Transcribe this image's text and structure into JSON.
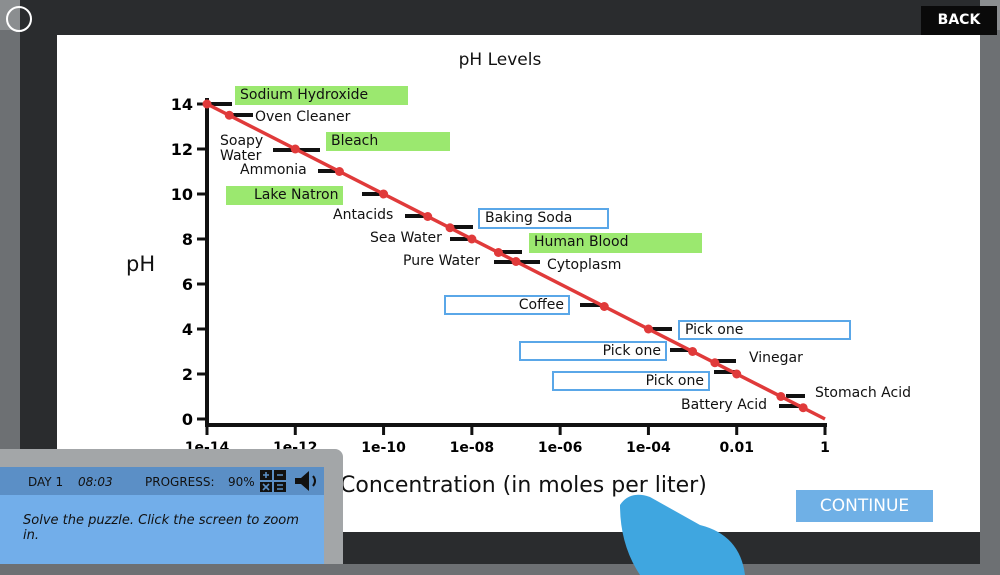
{
  "top": {
    "back_label": "BACK",
    "view_icon": "rotate-view-icon"
  },
  "chart_data": {
    "type": "line",
    "title": "pH Levels",
    "xlabel": "Concentration (in moles per liter)",
    "ylabel": "pH",
    "x_scale": "log",
    "xlim": [
      1e-14,
      1
    ],
    "ylim": [
      0,
      14
    ],
    "x_ticks": [
      "1e-14",
      "1e-12",
      "1e-10",
      "1e-08",
      "1e-06",
      "1e-04",
      "0.01",
      "1"
    ],
    "y_ticks": [
      "0",
      "2",
      "4",
      "6",
      "8",
      "10",
      "12",
      "14"
    ],
    "line_color": "#e03a3a",
    "points": [
      {
        "x": 1e-14,
        "y": 14
      },
      {
        "x": 3.2e-14,
        "y": 13.5
      },
      {
        "x": 1e-12,
        "y": 12
      },
      {
        "x": 1e-11,
        "y": 11
      },
      {
        "x": 1e-10,
        "y": 10
      },
      {
        "x": 1e-09,
        "y": 9
      },
      {
        "x": 3.2e-09,
        "y": 8.5
      },
      {
        "x": 1e-08,
        "y": 8
      },
      {
        "x": 4e-08,
        "y": 7.4
      },
      {
        "x": 1e-07,
        "y": 7
      },
      {
        "x": 1e-05,
        "y": 5
      },
      {
        "x": 0.0001,
        "y": 4
      },
      {
        "x": 0.001,
        "y": 3
      },
      {
        "x": 0.0032,
        "y": 2.5
      },
      {
        "x": 0.01,
        "y": 2
      },
      {
        "x": 0.1,
        "y": 1
      },
      {
        "x": 0.32,
        "y": 0.5
      }
    ],
    "annotations": [
      {
        "text": "Sodium Hydroxide",
        "style": "green"
      },
      {
        "text": "Oven Cleaner",
        "style": "plain"
      },
      {
        "text": "Soapy\nWater",
        "style": "plain"
      },
      {
        "text": "Bleach",
        "style": "green"
      },
      {
        "text": "Ammonia",
        "style": "plain"
      },
      {
        "text": "Lake Natron",
        "style": "green"
      },
      {
        "text": "Antacids",
        "style": "plain"
      },
      {
        "text": "Baking Soda",
        "style": "blue"
      },
      {
        "text": "Sea Water",
        "style": "plain"
      },
      {
        "text": "Human Blood",
        "style": "green"
      },
      {
        "text": "Pure Water",
        "style": "plain"
      },
      {
        "text": "Cytoplasm",
        "style": "plain"
      },
      {
        "text": "Coffee",
        "style": "blue"
      },
      {
        "text": "Pick one",
        "style": "blue"
      },
      {
        "text": "Pick one",
        "style": "blue"
      },
      {
        "text": "Vinegar",
        "style": "plain"
      },
      {
        "text": "Pick one",
        "style": "blue"
      },
      {
        "text": "Stomach Acid",
        "style": "plain"
      },
      {
        "text": "Battery Acid",
        "style": "plain"
      }
    ]
  },
  "footer": {
    "continue_label": "CONTINUE"
  },
  "panel": {
    "day": "DAY 1",
    "time": "08:03",
    "progress_label": "PROGRESS:",
    "progress_value": "90%",
    "progress_percent": 90,
    "calculator_icon": "calculator-icon",
    "sound_icon": "speaker-icon",
    "instruction": "Solve the puzzle. Click the screen to zoom in."
  }
}
